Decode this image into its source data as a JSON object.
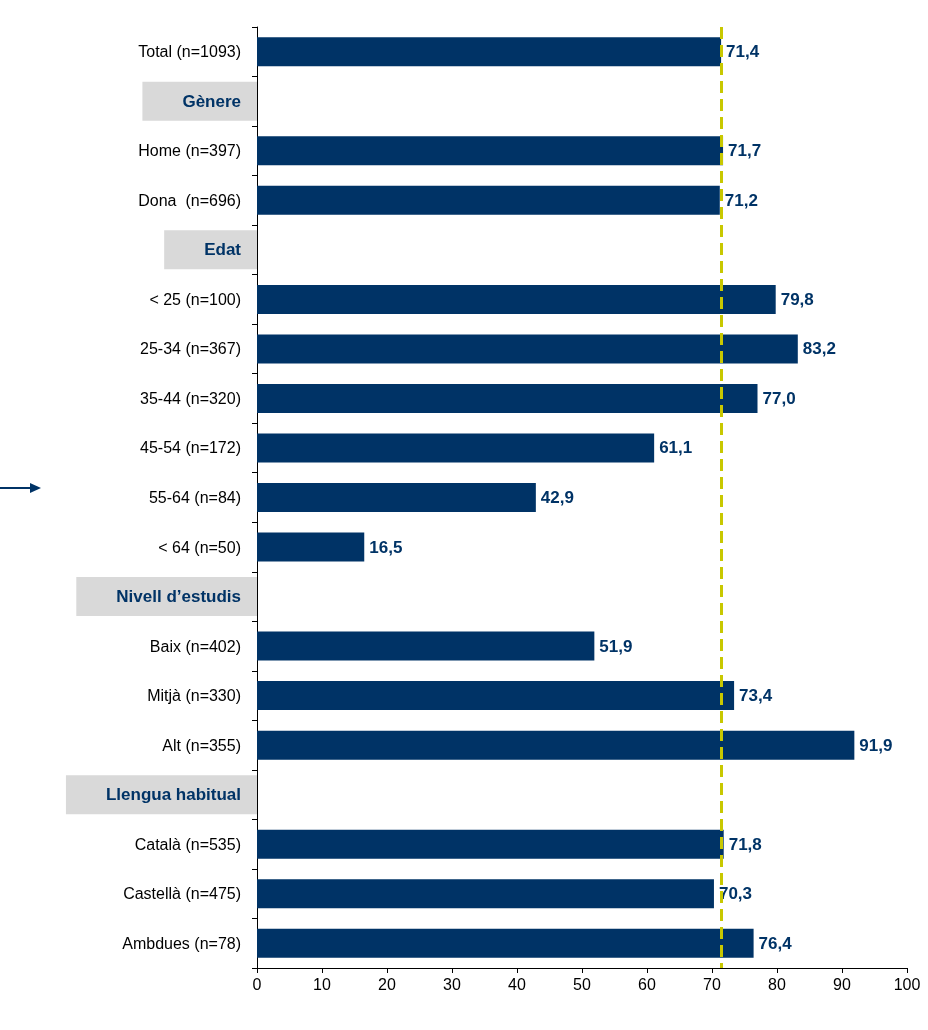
{
  "chart_data": {
    "type": "bar",
    "orientation": "horizontal",
    "color": "#003366",
    "categories": [
      "Total (n=1093)",
      "Gènere",
      "Home (n=397)",
      "Dona  (n=696)",
      "Edat",
      "< 25 (n=100)",
      "25-34 (n=367)",
      "35-44 (n=320)",
      "45-54 (n=172)",
      "55-64 (n=84)",
      "< 64 (n=50)",
      "Nivell d’estudis",
      "Baix (n=402)",
      "Mitjà (n=330)",
      "Alt (n=355)",
      "Llengua habitual",
      "Català (n=535)",
      "Castellà (n=475)",
      "Ambdues (n=78)"
    ],
    "values": [
      71.4,
      null,
      71.7,
      71.2,
      null,
      79.8,
      83.2,
      77.0,
      61.1,
      42.9,
      16.5,
      null,
      51.9,
      73.4,
      91.9,
      null,
      71.8,
      70.3,
      76.4
    ],
    "value_labels": [
      "71,4",
      null,
      "71,7",
      "71,2",
      null,
      "79,8",
      "83,2",
      "77,0",
      "61,1",
      "42,9",
      "16,5",
      null,
      "51,9",
      "73,4",
      "91,9",
      null,
      "71,8",
      "70,3",
      "76,4"
    ],
    "xlim": [
      0,
      100
    ],
    "xticks": [
      0,
      10,
      20,
      30,
      40,
      50,
      60,
      70,
      80,
      90,
      100
    ],
    "ref_lines": [
      {
        "axis": "x",
        "value": 71.4,
        "color": "#c8c800",
        "line_style": "dashed"
      }
    ]
  }
}
